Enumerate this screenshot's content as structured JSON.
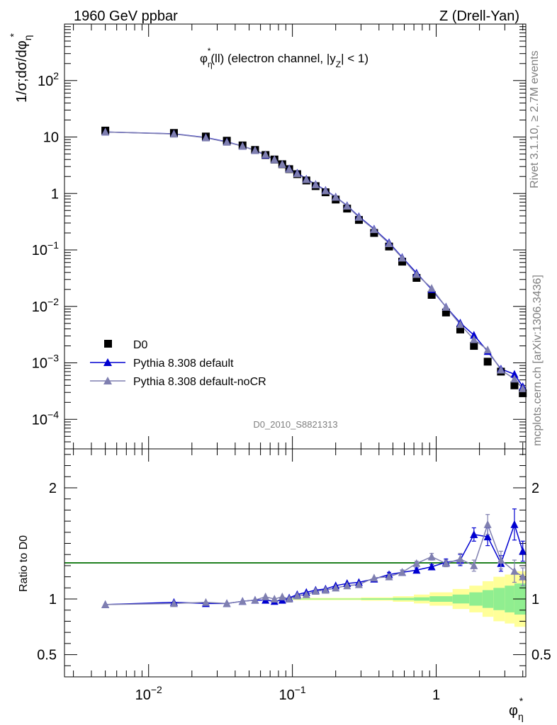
{
  "header": {
    "left": "1960 GeV ppbar",
    "right": "Z (Drell-Yan)"
  },
  "side_text": {
    "rivet": "Rivet 3.1.10, ≥ 2.7M events",
    "mcplots": "mcplots.cern.ch [arXiv:1306.3436]"
  },
  "analysis_tag": "D0_2010_S8821313",
  "colors": {
    "data": "#000000",
    "default": "#0000d0",
    "nocr": "#7f7fb0",
    "band_inner": "#90ee90",
    "band_outer": "#ffff99",
    "ref_line": "#33cc33"
  },
  "chart_data": [
    {
      "type": "scatter",
      "name": "main",
      "title": "φη*(ll) (electron channel, |yZ| < 1)",
      "title_parts": {
        "phi": "φ",
        "star": "*",
        "eta": "η",
        "rest1": "(ll) (electron channel, |y",
        "z": "Z",
        "rest2": "| < 1)"
      },
      "ylabel": "1/σ;dσ/dφη*",
      "ylabel_parts": {
        "a": "1/σ;dσ/dφ",
        "eta": "η",
        "star": "*"
      },
      "xscale": "log",
      "yscale": "log",
      "xlim": [
        0.0026,
        4.2
      ],
      "ylim": [
        3e-05,
        1000
      ],
      "yticks": [
        {
          "value": 100,
          "base": "10",
          "exp": "2"
        },
        {
          "value": 10,
          "base": "10",
          "exp": ""
        },
        {
          "value": 1,
          "base": "1",
          "exp": ""
        },
        {
          "value": 0.1,
          "base": "10",
          "exp": "−1"
        },
        {
          "value": 0.01,
          "base": "10",
          "exp": "−2"
        },
        {
          "value": 0.001,
          "base": "10",
          "exp": "−3"
        },
        {
          "value": 0.0001,
          "base": "10",
          "exp": "−4"
        }
      ],
      "legend_position": "lower-left",
      "x": [
        0.005,
        0.015,
        0.025,
        0.035,
        0.045,
        0.055,
        0.065,
        0.075,
        0.085,
        0.095,
        0.11,
        0.13,
        0.15,
        0.17,
        0.19,
        0.22,
        0.26,
        0.3,
        0.34,
        0.38,
        0.44,
        0.52,
        0.6,
        0.68,
        0.76,
        0.84,
        0.92
      ],
      "series": [
        {
          "name": "D0",
          "key": "data",
          "marker": "square",
          "x": [
            0.005,
            0.015,
            0.025,
            0.035,
            0.045,
            0.055,
            0.065,
            0.075,
            0.085,
            0.095,
            0.108,
            0.125,
            0.145,
            0.17,
            0.2,
            0.24,
            0.29,
            0.37,
            0.47,
            0.58,
            0.73,
            0.93,
            1.17,
            1.47,
            1.83,
            2.28,
            2.82,
            3.5,
            4.0
          ],
          "values": [
            13.0,
            11.8,
            10.2,
            8.6,
            7.1,
            5.9,
            4.8,
            4.0,
            3.3,
            2.7,
            2.2,
            1.7,
            1.35,
            1.05,
            0.78,
            0.54,
            0.34,
            0.2,
            0.115,
            0.062,
            0.032,
            0.016,
            0.0078,
            0.0039,
            0.002,
            0.00105,
            0.0007,
            0.0004,
            0.00029
          ]
        },
        {
          "name": "Pythia 8.308 default",
          "key": "default",
          "marker": "triangle",
          "x": [
            0.005,
            0.015,
            0.025,
            0.035,
            0.045,
            0.055,
            0.065,
            0.075,
            0.085,
            0.095,
            0.108,
            0.125,
            0.145,
            0.17,
            0.2,
            0.24,
            0.29,
            0.37,
            0.47,
            0.58,
            0.73,
            0.93,
            1.17,
            1.47,
            1.83,
            2.28,
            2.82,
            3.5,
            4.0
          ],
          "values": [
            12.3,
            11.4,
            9.8,
            8.2,
            6.9,
            5.8,
            4.8,
            4.0,
            3.3,
            2.75,
            2.3,
            1.8,
            1.45,
            1.14,
            0.87,
            0.61,
            0.39,
            0.235,
            0.135,
            0.074,
            0.039,
            0.02,
            0.0098,
            0.0051,
            0.0031,
            0.0016,
            0.00078,
            0.00063,
            0.00038
          ]
        },
        {
          "name": "Pythia 8.308 default-noCR",
          "key": "nocr",
          "marker": "triangle",
          "x": [
            0.005,
            0.015,
            0.025,
            0.035,
            0.045,
            0.055,
            0.065,
            0.075,
            0.085,
            0.095,
            0.108,
            0.125,
            0.145,
            0.17,
            0.2,
            0.24,
            0.29,
            0.37,
            0.47,
            0.58,
            0.73,
            0.93,
            1.17,
            1.47,
            1.83,
            2.28,
            2.82,
            3.5,
            4.0
          ],
          "values": [
            12.3,
            11.3,
            9.7,
            8.1,
            6.9,
            5.8,
            4.9,
            4.0,
            3.3,
            2.7,
            2.25,
            1.77,
            1.43,
            1.12,
            0.86,
            0.6,
            0.38,
            0.23,
            0.13,
            0.072,
            0.037,
            0.021,
            0.0097,
            0.0048,
            0.0026,
            0.0017,
            0.00075,
            0.00052,
            0.00035
          ]
        }
      ]
    },
    {
      "type": "scatter",
      "name": "ratio",
      "ylabel": "Ratio to D0",
      "xlabel": "φη*",
      "xlabel_parts": {
        "phi": "φ",
        "star": "*",
        "eta": "η"
      },
      "xscale": "log",
      "yscale": "linear",
      "xlim": [
        0.0026,
        4.2
      ],
      "ylim": [
        0.3,
        2.35
      ],
      "xticks": [
        {
          "value": 0.01,
          "base": "10",
          "exp": "−2"
        },
        {
          "value": 0.1,
          "base": "10",
          "exp": "−1"
        },
        {
          "value": 1,
          "base": "1",
          "exp": ""
        }
      ],
      "yticks": [
        {
          "value": 2,
          "label": "2"
        },
        {
          "value": 1,
          "label": "1"
        },
        {
          "value": 0.5,
          "label": "0.5"
        }
      ],
      "band_edges": [
        0.1,
        0.3,
        0.5,
        0.7,
        0.9,
        1.3,
        1.7,
        2.1,
        2.5,
        3.0,
        3.5,
        4.2
      ],
      "band_inner": [
        0.004,
        0.006,
        0.01,
        0.015,
        0.025,
        0.04,
        0.06,
        0.08,
        0.1,
        0.12,
        0.14
      ],
      "band_outer": [
        0.01,
        0.015,
        0.025,
        0.04,
        0.06,
        0.09,
        0.12,
        0.16,
        0.2,
        0.22,
        0.25
      ],
      "series": [
        {
          "name": "Pythia 8.308 default",
          "key": "default",
          "x": [
            0.005,
            0.015,
            0.025,
            0.035,
            0.045,
            0.055,
            0.065,
            0.075,
            0.085,
            0.095,
            0.108,
            0.125,
            0.145,
            0.17,
            0.2,
            0.24,
            0.29,
            0.37,
            0.47,
            0.58,
            0.73,
            0.93,
            1.17,
            1.47,
            1.83,
            2.28,
            2.82,
            3.5,
            4.0
          ],
          "values": [
            0.95,
            0.97,
            0.96,
            0.96,
            0.98,
            0.99,
            0.99,
            0.98,
            0.99,
            1.01,
            1.04,
            1.06,
            1.08,
            1.09,
            1.12,
            1.14,
            1.15,
            1.18,
            1.22,
            1.24,
            1.26,
            1.29,
            1.33,
            1.35,
            1.58,
            1.56,
            1.32,
            1.67,
            1.43
          ],
          "errors": [
            0.01,
            0.01,
            0.01,
            0.01,
            0.01,
            0.01,
            0.01,
            0.01,
            0.01,
            0.01,
            0.01,
            0.01,
            0.01,
            0.01,
            0.01,
            0.01,
            0.01,
            0.01,
            0.02,
            0.02,
            0.02,
            0.02,
            0.03,
            0.05,
            0.06,
            0.08,
            0.07,
            0.14,
            0.09
          ]
        },
        {
          "name": "Pythia 8.308 default-noCR",
          "key": "nocr",
          "x": [
            0.005,
            0.015,
            0.025,
            0.035,
            0.045,
            0.055,
            0.065,
            0.075,
            0.085,
            0.095,
            0.108,
            0.125,
            0.145,
            0.17,
            0.2,
            0.24,
            0.29,
            0.37,
            0.47,
            0.58,
            0.73,
            0.93,
            1.17,
            1.47,
            1.83,
            2.28,
            2.82,
            3.5,
            4.0
          ],
          "values": [
            0.95,
            0.96,
            0.97,
            0.96,
            0.98,
            0.99,
            1.02,
            1.0,
            1.02,
            1.0,
            1.03,
            1.04,
            1.07,
            1.08,
            1.1,
            1.12,
            1.13,
            1.19,
            1.2,
            1.24,
            1.32,
            1.38,
            1.32,
            1.36,
            1.3,
            1.67,
            1.35,
            1.25,
            1.2
          ],
          "errors": [
            0.01,
            0.01,
            0.01,
            0.01,
            0.01,
            0.01,
            0.01,
            0.01,
            0.01,
            0.01,
            0.01,
            0.01,
            0.01,
            0.01,
            0.01,
            0.01,
            0.01,
            0.01,
            0.02,
            0.02,
            0.02,
            0.03,
            0.03,
            0.05,
            0.05,
            0.09,
            0.08,
            0.1,
            0.08
          ]
        }
      ]
    }
  ]
}
